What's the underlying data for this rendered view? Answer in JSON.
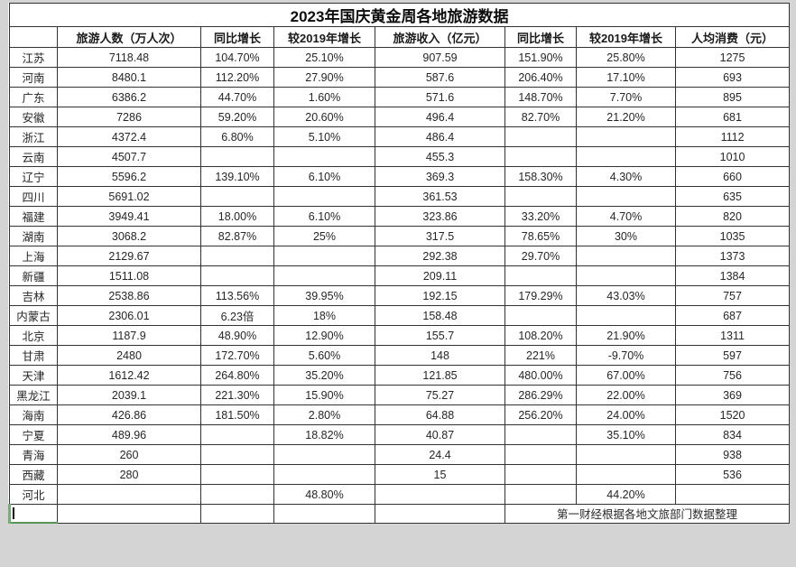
{
  "title": "2023年国庆黄金周各地旅游数据",
  "chart_data": {
    "type": "table",
    "title": "2023年国庆黄金周各地旅游数据",
    "columns": [
      "",
      "旅游人数（万人次）",
      "同比增长",
      "较2019年增长",
      "旅游收入（亿元）",
      "同比增长",
      "较2019年增长",
      "人均消费（元）"
    ],
    "rows": [
      [
        "江苏",
        "7118.48",
        "104.70%",
        "25.10%",
        "907.59",
        "151.90%",
        "25.80%",
        "1275"
      ],
      [
        "河南",
        "8480.1",
        "112.20%",
        "27.90%",
        "587.6",
        "206.40%",
        "17.10%",
        "693"
      ],
      [
        "广东",
        "6386.2",
        "44.70%",
        "1.60%",
        "571.6",
        "148.70%",
        "7.70%",
        "895"
      ],
      [
        "安徽",
        "7286",
        "59.20%",
        "20.60%",
        "496.4",
        "82.70%",
        "21.20%",
        "681"
      ],
      [
        "浙江",
        "4372.4",
        "6.80%",
        "5.10%",
        "486.4",
        "",
        "",
        "1112"
      ],
      [
        "云南",
        "4507.7",
        "",
        "",
        "455.3",
        "",
        "",
        "1010"
      ],
      [
        "辽宁",
        "5596.2",
        "139.10%",
        "6.10%",
        "369.3",
        "158.30%",
        "4.30%",
        "660"
      ],
      [
        "四川",
        "5691.02",
        "",
        "",
        "361.53",
        "",
        "",
        "635"
      ],
      [
        "福建",
        "3949.41",
        "18.00%",
        "6.10%",
        "323.86",
        "33.20%",
        "4.70%",
        "820"
      ],
      [
        "湖南",
        "3068.2",
        "82.87%",
        "25%",
        "317.5",
        "78.65%",
        "30%",
        "1035"
      ],
      [
        "上海",
        "2129.67",
        "",
        "",
        "292.38",
        "29.70%",
        "",
        "1373"
      ],
      [
        "新疆",
        "1511.08",
        "",
        "",
        "209.11",
        "",
        "",
        "1384"
      ],
      [
        "吉林",
        "2538.86",
        "113.56%",
        "39.95%",
        "192.15",
        "179.29%",
        "43.03%",
        "757"
      ],
      [
        "内蒙古",
        "2306.01",
        "6.23倍",
        "18%",
        "158.48",
        "",
        "",
        "687"
      ],
      [
        "北京",
        "1187.9",
        "48.90%",
        "12.90%",
        "155.7",
        "108.20%",
        "21.90%",
        "1311"
      ],
      [
        "甘肃",
        "2480",
        "172.70%",
        "5.60%",
        "148",
        "221%",
        "-9.70%",
        "597"
      ],
      [
        "天津",
        "1612.42",
        "264.80%",
        "35.20%",
        "121.85",
        "480.00%",
        "67.00%",
        "756"
      ],
      [
        "黑龙江",
        "2039.1",
        "221.30%",
        "15.90%",
        "75.27",
        "286.29%",
        "22.00%",
        "369"
      ],
      [
        "海南",
        "426.86",
        "181.50%",
        "2.80%",
        "64.88",
        "256.20%",
        "24.00%",
        "1520"
      ],
      [
        "宁夏",
        "489.96",
        "",
        "18.82%",
        "40.87",
        "",
        "35.10%",
        "834"
      ],
      [
        "青海",
        "260",
        "",
        "",
        "24.4",
        "",
        "",
        "938"
      ],
      [
        "西藏",
        "280",
        "",
        "",
        "15",
        "",
        "",
        "536"
      ],
      [
        "河北",
        "",
        "",
        "48.80%",
        "",
        "",
        "44.20%",
        ""
      ]
    ],
    "source_note": "第一财经根据各地文旅部门数据整理"
  },
  "footer": {
    "source_note": "第一财经根据各地文旅部门数据整理"
  },
  "colors": {
    "border": "#333333",
    "outer_background": "#d4d4d4",
    "cell_background": "#ffffff",
    "text": "#262626",
    "selection_green": "#579557"
  }
}
